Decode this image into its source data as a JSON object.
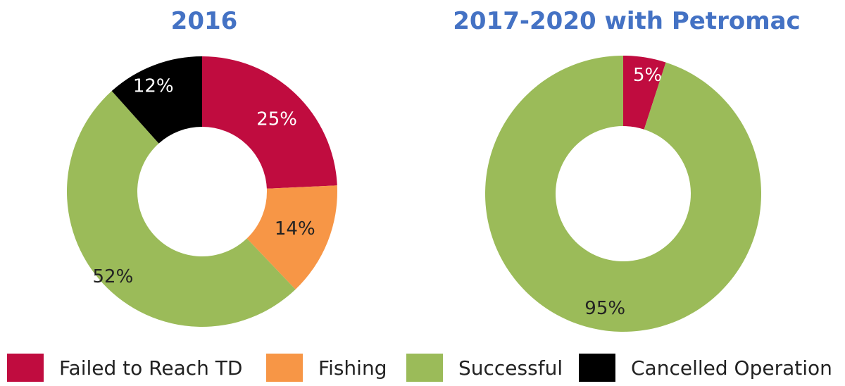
{
  "colors": {
    "failed": "#c00c3f",
    "fishing": "#f79646",
    "successful": "#9bbb59",
    "cancelled": "#000000"
  },
  "chart_data": [
    {
      "type": "pie",
      "variant": "donut",
      "title": "2016",
      "slices": [
        {
          "category": "Failed to Reach TD",
          "value": 25,
          "label": "25%",
          "color": "#c00c3f"
        },
        {
          "category": "Fishing",
          "value": 14,
          "label": "14%",
          "color": "#f79646"
        },
        {
          "category": "Successful",
          "value": 52,
          "label": "52%",
          "color": "#9bbb59"
        },
        {
          "category": "Cancelled Operation",
          "value": 12,
          "label": "12%",
          "color": "#000000"
        }
      ]
    },
    {
      "type": "pie",
      "variant": "donut",
      "title": "2017-2020 with Petromac",
      "slices": [
        {
          "category": "Failed to Reach TD",
          "value": 5,
          "label": "5%",
          "color": "#c00c3f"
        },
        {
          "category": "Successful",
          "value": 95,
          "label": "95%",
          "color": "#9bbb59"
        }
      ]
    }
  ],
  "legend": {
    "position": "bottom",
    "items": [
      {
        "label": "Failed to Reach TD",
        "color": "#c00c3f"
      },
      {
        "label": "Fishing",
        "color": "#f79646"
      },
      {
        "label": "Successful",
        "color": "#9bbb59"
      },
      {
        "label": "Cancelled Operation",
        "color": "#000000"
      }
    ]
  }
}
